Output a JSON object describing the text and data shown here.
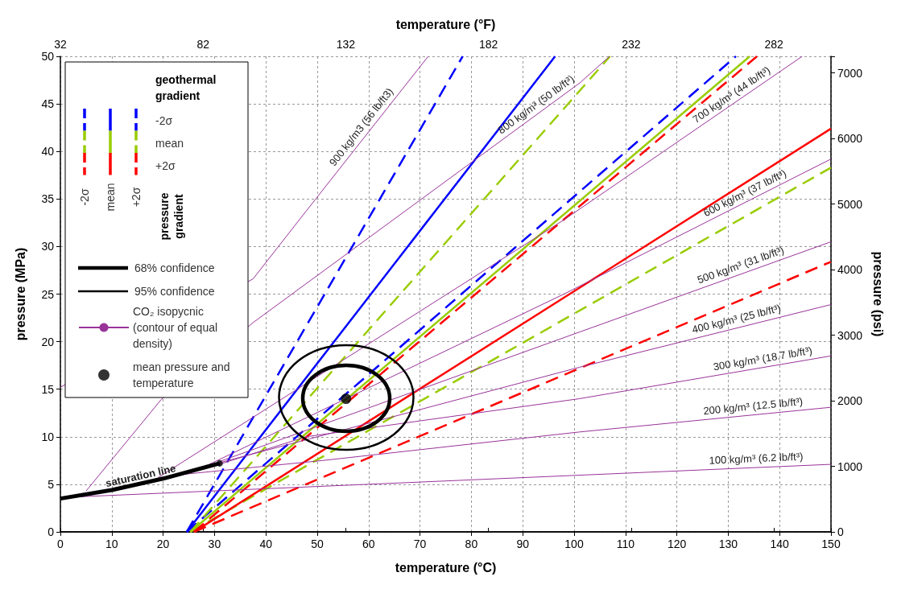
{
  "chart_data": {
    "type": "line",
    "xlabel": "temperature (°C)",
    "x2label": "temperature (°F)",
    "ylabel": "pressure (MPa)",
    "y2label": "pressure (psi)",
    "legend_title": "geothermal gradient",
    "legend": "left",
    "grid": true,
    "xlim": [
      0,
      150
    ],
    "xticks": [
      0,
      10,
      20,
      30,
      40,
      50,
      60,
      70,
      80,
      90,
      100,
      110,
      120,
      130,
      140,
      150
    ],
    "x2lim": [
      32,
      302
    ],
    "x2ticks": [
      32,
      82,
      132,
      182,
      232,
      282
    ],
    "ylim": [
      0,
      50
    ],
    "yticks": [
      0,
      5,
      10,
      15,
      20,
      25,
      30,
      35,
      40,
      45,
      50
    ],
    "y2lim": [
      0,
      7252
    ],
    "y2ticks": [
      0,
      1000,
      2000,
      3000,
      4000,
      5000,
      6000,
      7000
    ],
    "series": [
      {
        "color": "#0000ff",
        "line_style": "dashed",
        "x": [
          24.6,
          131.5
        ],
        "values": [
          0,
          50
        ]
      },
      {
        "color": "#0000ff",
        "line_style": "solid",
        "x": [
          24.6,
          96.3
        ],
        "values": [
          0,
          50
        ]
      },
      {
        "color": "#0000ff",
        "line_style": "dashed",
        "x": [
          24.6,
          78.3
        ],
        "values": [
          0,
          50
        ]
      },
      {
        "color": "#99cc00",
        "line_style": "dashed",
        "x": [
          25.3,
          150
        ],
        "values": [
          0,
          38.3
        ]
      },
      {
        "color": "#99cc00",
        "line_style": "solid",
        "x": [
          25.3,
          134.2
        ],
        "values": [
          0,
          50
        ]
      },
      {
        "color": "#99cc00",
        "line_style": "dashed",
        "x": [
          25.3,
          107
        ],
        "values": [
          0,
          50
        ]
      },
      {
        "color": "#ff0000",
        "line_style": "dashed",
        "x": [
          26,
          150
        ],
        "values": [
          0,
          28.4
        ]
      },
      {
        "color": "#ff0000",
        "line_style": "solid",
        "x": [
          26,
          150
        ],
        "values": [
          0,
          42.4
        ]
      },
      {
        "color": "#ff0000",
        "line_style": "dashed",
        "x": [
          26,
          135.6
        ],
        "values": [
          0,
          50
        ]
      },
      {
        "name": "CO₂ isopycnic (contour of equal density)",
        "color": "#993399",
        "x": [
          0,
          37.5,
          47.8,
          71.6
        ],
        "values": [
          15.2,
          26.6,
          33.7,
          50
        ]
      },
      {
        "color": "#993399",
        "x": [
          5,
          19.6,
          37.5,
          101.1,
          106.9
        ],
        "values": [
          4.3,
          13.9,
          22.0,
          47.2,
          50
        ]
      },
      {
        "color": "#993399",
        "x": [
          19,
          98,
          144.4
        ],
        "values": [
          5.7,
          32.8,
          50
        ]
      },
      {
        "color": "#993399",
        "x": [
          29,
          98,
          150
        ],
        "values": [
          7.1,
          25,
          39.2
        ]
      },
      {
        "color": "#993399",
        "x": [
          31,
          101,
          150
        ],
        "values": [
          7.4,
          21,
          30.5
        ]
      },
      {
        "color": "#993399",
        "x": [
          30.5,
          101,
          150
        ],
        "values": [
          7.2,
          17.3,
          23.9
        ]
      },
      {
        "color": "#993399",
        "x": [
          28,
          47.8,
          101,
          150
        ],
        "values": [
          6.6,
          10,
          14,
          18.5
        ]
      },
      {
        "color": "#993399",
        "x": [
          23,
          51,
          101,
          150
        ],
        "values": [
          6,
          7.5,
          10.5,
          13.1
        ]
      },
      {
        "color": "#993399",
        "x": [
          4,
          150
        ],
        "values": [
          3.7,
          7.1
        ]
      },
      {
        "color": "#000000",
        "x": [
          0,
          10,
          20,
          31
        ],
        "values": [
          3.5,
          4.4,
          5.6,
          7.2
        ]
      },
      {
        "type": "scatter",
        "color": "#000000",
        "x": [
          31
        ],
        "values": [
          7.2
        ]
      },
      {
        "type": "scatter",
        "name": "mean pressure and temperature",
        "color": "#000000",
        "x": [
          55.6
        ],
        "values": [
          14.0
        ]
      }
    ],
    "annotations": [
      "-2σ",
      "mean",
      "+2σ",
      "pressure gradient",
      "68% confidence",
      "95% confidence",
      {
        "text": "saturation line",
        "x": 16,
        "y": 5.0
      },
      {
        "text": "900 kg/m3 (56 lb/ft3)",
        "x": 59.9,
        "y": 42.0
      },
      {
        "text": "800 kg/m³ (50 lb/ft³)",
        "x": 93.6,
        "y": 44.2
      },
      {
        "text": "700 kg/m³ (44 lb/ft³)",
        "x": 131.6,
        "y": 45.2
      },
      {
        "text": "600 kg/m³ (37 lb/ft³)",
        "x": 134,
        "y": 34.8
      },
      {
        "text": "500 kg/m³ (31 lb/ft³)",
        "x": 133,
        "y": 27.2
      },
      {
        "text": "400 kg/m³ (25 lb/ft³)",
        "x": 132,
        "y": 21.5
      },
      {
        "text": "300 kg/m³ (18.7 lb/ft³)",
        "x": 137,
        "y": 17.3
      },
      {
        "text": "200 kg/m³ (12.5 lb/ft³)",
        "x": 135,
        "y": 12.3
      },
      {
        "text": "100 kg/m³ (6.2 lb/ft³)",
        "x": 135.5,
        "y": 6.8
      }
    ]
  }
}
